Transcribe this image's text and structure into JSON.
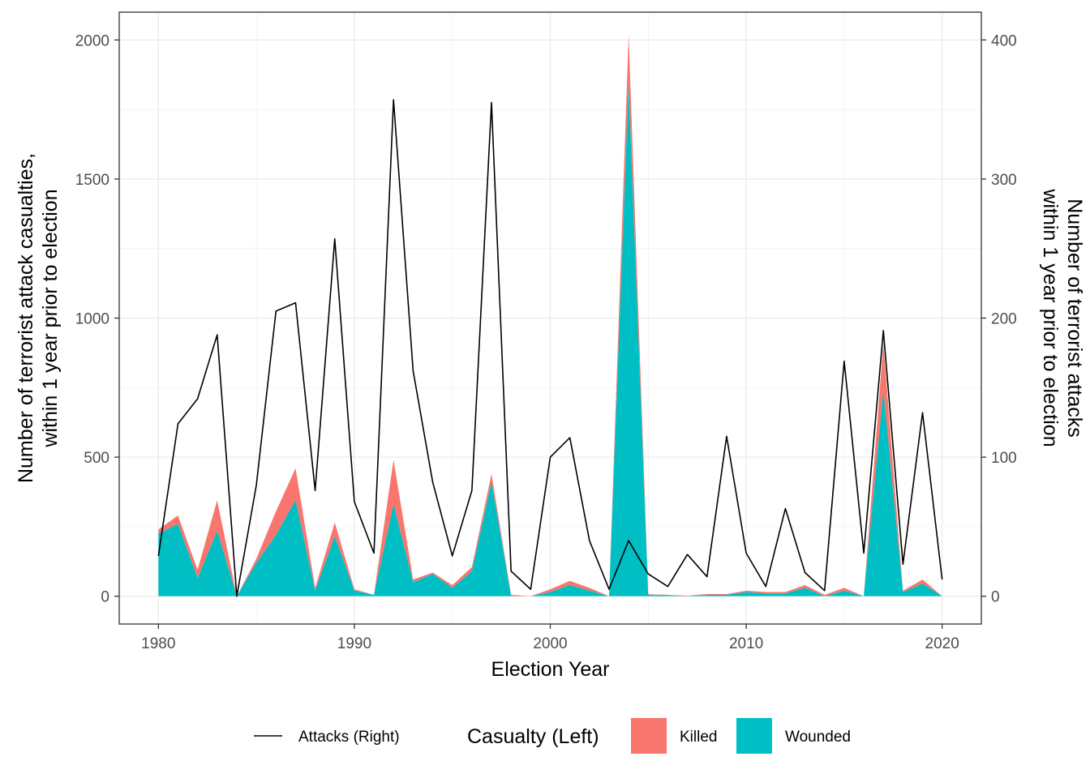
{
  "chart_data": {
    "type": "area",
    "xlabel": "Election Year",
    "ylabel_left": [
      "Number of terrorist attack casualties,",
      "within 1 year prior to election"
    ],
    "ylabel_right": [
      "Number of terrorist attacks",
      "within 1 year prior to election"
    ],
    "xlim": [
      1978,
      2022
    ],
    "ylim_left": [
      -100,
      2100
    ],
    "ylim_right": [
      -20,
      420
    ],
    "x_ticks": [
      1980,
      1990,
      2000,
      2010,
      2020
    ],
    "x_tick_labels": [
      "1980",
      "1990",
      "2000",
      "2010",
      "2020"
    ],
    "y_left_ticks": [
      0,
      500,
      1000,
      1500,
      2000
    ],
    "y_left_tick_labels": [
      "0",
      "500",
      "1000",
      "1500",
      "2000"
    ],
    "y_right_ticks": [
      0,
      100,
      200,
      300,
      400
    ],
    "y_right_tick_labels": [
      "0",
      "100",
      "200",
      "300",
      "400"
    ],
    "grid": true,
    "legend_position": "bottom",
    "x": [
      1980,
      1981,
      1982,
      1983,
      1984,
      1985,
      1986,
      1987,
      1988,
      1989,
      1990,
      1991,
      1992,
      1993,
      1994,
      1995,
      1996,
      1997,
      1998,
      1999,
      2000,
      2001,
      2002,
      2003,
      2004,
      2005,
      2006,
      2007,
      2008,
      2009,
      2010,
      2011,
      2012,
      2013,
      2014,
      2015,
      2016,
      2017,
      2018,
      2019,
      2020
    ],
    "series": [
      {
        "name": "Wounded",
        "axis": "left",
        "type": "area",
        "color": "#00BFC4",
        "values": [
          225,
          260,
          65,
          235,
          0,
          120,
          220,
          345,
          20,
          215,
          20,
          5,
          330,
          50,
          80,
          30,
          90,
          410,
          0,
          0,
          15,
          40,
          20,
          0,
          1840,
          5,
          3,
          0,
          5,
          5,
          15,
          10,
          10,
          30,
          0,
          20,
          0,
          740,
          15,
          45,
          0
        ]
      },
      {
        "name": "Killed",
        "axis": "left",
        "type": "area",
        "color": "#F8766D",
        "values": [
          15,
          30,
          30,
          110,
          0,
          15,
          85,
          115,
          10,
          50,
          5,
          0,
          160,
          10,
          5,
          10,
          15,
          30,
          5,
          0,
          10,
          15,
          10,
          0,
          180,
          2,
          2,
          2,
          3,
          3,
          5,
          5,
          5,
          10,
          5,
          10,
          0,
          170,
          5,
          15,
          0
        ]
      },
      {
        "name": "Attacks (Right)",
        "axis": "right",
        "type": "line",
        "color": "#000000",
        "values": [
          29,
          124,
          142,
          188,
          0,
          80,
          205,
          211,
          76,
          257,
          68,
          31,
          357,
          162,
          82,
          29,
          76,
          355,
          18,
          5,
          100,
          114,
          40,
          5,
          40,
          16,
          7,
          30,
          14,
          115,
          31,
          7,
          63,
          17,
          4,
          169,
          31,
          191,
          23,
          132,
          12
        ]
      }
    ],
    "legend": {
      "line_label": "Attacks (Right)",
      "fill_title": "Casualty (Left)",
      "fill_items": [
        "Killed",
        "Wounded"
      ]
    }
  }
}
